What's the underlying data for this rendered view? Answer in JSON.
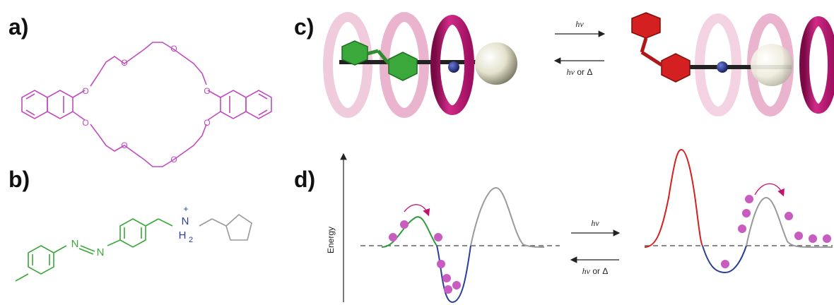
{
  "panels": {
    "a": "a)",
    "b": "b)",
    "c": "c)",
    "d": "d)"
  },
  "crown_ether": {
    "oxygen_atom": "O"
  },
  "axle": {
    "nitrogen_1": "N",
    "nitrogen_2": "N",
    "ammonium_n": "N",
    "ammonium_h": "H",
    "ammonium_sub": "2",
    "ammonium_charge": "+"
  },
  "arrows_c": {
    "forward": "hν",
    "reverse_main": "hν",
    "reverse_or": " or Δ"
  },
  "arrows_d": {
    "forward": "hν",
    "reverse_main": "hν",
    "reverse_or": " or Δ"
  },
  "energy_axis": {
    "label": "Energy"
  },
  "colors": {
    "crown": "#c04cc0",
    "axle_green": "#3aa83a",
    "axle_red": "#d42020",
    "ring_magenta": "#c0136f",
    "ring_faded": "#e6a6c6",
    "well_blue": "#2a3f9a",
    "ball_purple": "#c85cc0",
    "curve_gray": "#9a9a9a"
  }
}
